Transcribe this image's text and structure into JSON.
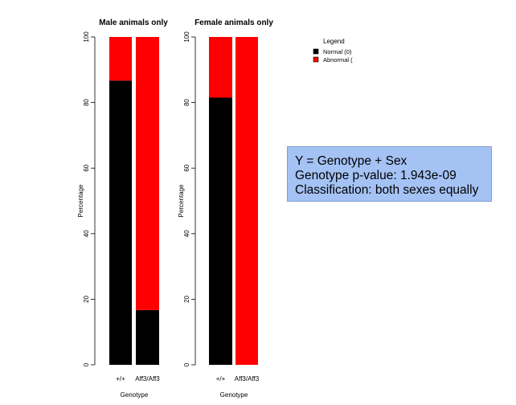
{
  "chart_data": [
    {
      "type": "bar",
      "stacked": true,
      "title": "Male animals only",
      "xlabel": "Genotype",
      "ylabel": "Percentage",
      "ylim": [
        0,
        100
      ],
      "yticks": [
        0,
        20,
        40,
        60,
        80,
        100
      ],
      "categories": [
        "+/+",
        "Aff3/Aff3"
      ],
      "series": [
        {
          "name": "Normal (0)",
          "color": "#000000",
          "values": [
            86.7,
            16.7
          ]
        },
        {
          "name": "Abnormal (",
          "color": "#ff0000",
          "values": [
            13.3,
            83.3
          ]
        }
      ]
    },
    {
      "type": "bar",
      "stacked": true,
      "title": "Female animals only",
      "xlabel": "Genotype",
      "ylabel": "Percentage",
      "ylim": [
        0,
        100
      ],
      "yticks": [
        0,
        20,
        40,
        60,
        80,
        100
      ],
      "categories": [
        "+/+",
        "Aff3/Aff3"
      ],
      "series": [
        {
          "name": "Normal (0)",
          "color": "#000000",
          "values": [
            81.5,
            0
          ]
        },
        {
          "name": "Abnormal (",
          "color": "#ff0000",
          "values": [
            18.5,
            100
          ]
        }
      ]
    }
  ],
  "legend": {
    "title": "Legend",
    "position": "top-right",
    "items": [
      {
        "label": "Normal (0)",
        "color": "#000000"
      },
      {
        "label": "Abnormal (",
        "color": "#ff0000"
      }
    ]
  },
  "info_box": {
    "line1": "Y = Genotype + Sex",
    "line2": "Genotype p-value: 1.943e-09",
    "line3": "Classification: both sexes equally"
  }
}
